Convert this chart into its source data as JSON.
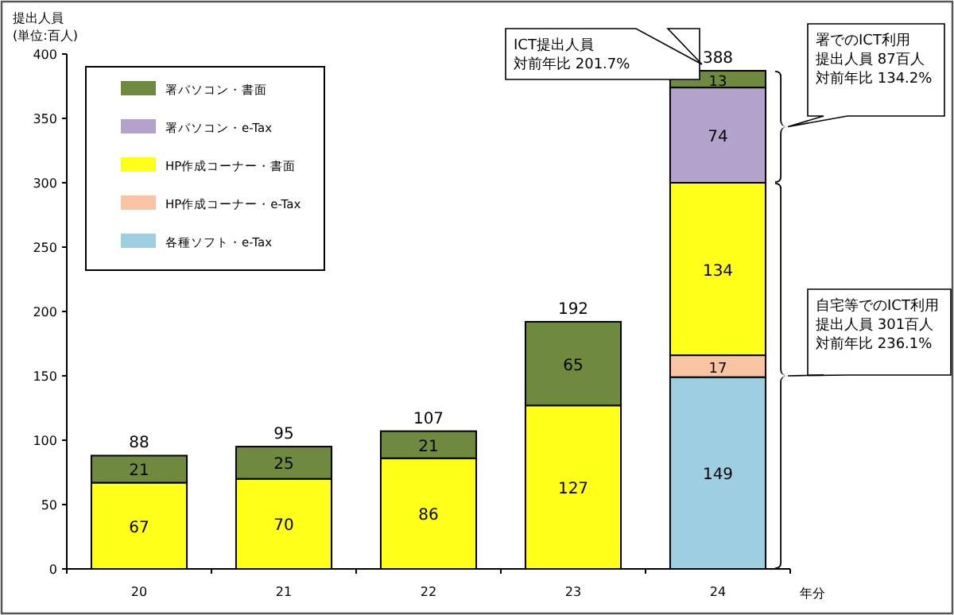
{
  "chart_data": {
    "type": "bar",
    "stacked": true,
    "ylabel": "提出人員\n(単位:百人)",
    "xlabel": "年分",
    "categories": [
      "20",
      "21",
      "22",
      "23",
      "24"
    ],
    "series": [
      {
        "name": "各種ソフト・e-Tax",
        "color": "#9dcfe0",
        "values": [
          null,
          null,
          null,
          null,
          149
        ]
      },
      {
        "name": "HP作成コーナー・e-Tax",
        "color": "#f9c4a4",
        "values": [
          null,
          null,
          null,
          null,
          17
        ]
      },
      {
        "name": "HP作成コーナー・書面",
        "color": "#ffff1a",
        "values": [
          67,
          70,
          86,
          127,
          134
        ]
      },
      {
        "name": "署パソコン・e-Tax",
        "color": "#b3a3cc",
        "values": [
          null,
          null,
          null,
          null,
          74
        ]
      },
      {
        "name": "署パソコン・書面",
        "color": "#6f8a3f",
        "values": [
          21,
          25,
          21,
          65,
          13
        ]
      }
    ],
    "totals": [
      "88",
      "95",
      "107",
      "192",
      "388"
    ],
    "ylim": [
      0,
      400
    ],
    "yticks": [
      0,
      50,
      100,
      150,
      200,
      250,
      300,
      350,
      400
    ],
    "data_labels": true,
    "legend": "top left",
    "grid": false,
    "annotations": [
      "ICT提出人員",
      "対前年比 201.7%",
      "署でのICT利用",
      "提出人員 87百人",
      "対前年比 134.2%",
      "自宅等でのICT利用",
      "提出人員 301百人",
      "対前年比 236.1%"
    ]
  }
}
